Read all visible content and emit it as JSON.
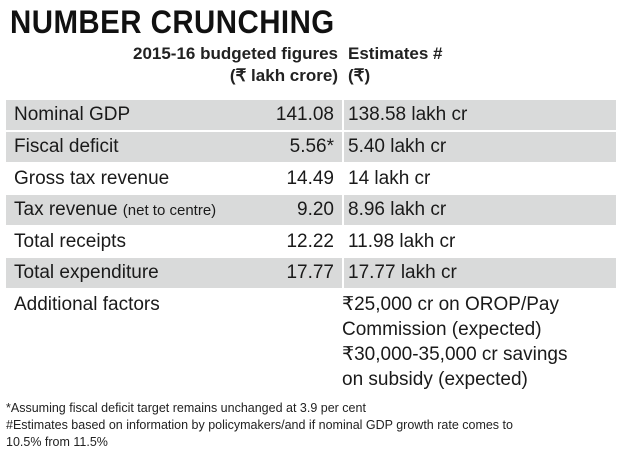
{
  "title": "NUMBER CRUNCHING",
  "headers": {
    "col1_line1": "2015-16 budgeted figures",
    "col1_line2": "(₹ lakh crore)",
    "col2_line1": "Estimates #",
    "col2_line2": "(₹)"
  },
  "rows": [
    {
      "label": "Nominal GDP",
      "note": "",
      "budget": "141.08",
      "estimate": "138.58 lakh cr"
    },
    {
      "label": "Fiscal deficit",
      "note": "",
      "budget": "5.56*",
      "estimate": "5.40 lakh cr"
    },
    {
      "label": "Gross tax revenue",
      "note": "",
      "budget": "14.49",
      "estimate": "14 lakh cr"
    },
    {
      "label": "Tax revenue",
      "note": "(net to centre)",
      "budget": "9.20",
      "estimate": "8.96 lakh cr"
    },
    {
      "label": "Total receipts",
      "note": "",
      "budget": "12.22",
      "estimate": "11.98 lakh cr"
    },
    {
      "label": "Total expenditure",
      "note": "",
      "budget": "17.77",
      "estimate": "17.77 lakh cr"
    }
  ],
  "additional": {
    "label": "Additional factors",
    "lines": [
      "₹25,000 cr on OROP/Pay",
      "Commission (expected)",
      "₹30,000-35,000 cr savings",
      "on subsidy (expected)"
    ]
  },
  "footnotes": [
    "*Assuming fiscal deficit target remains unchanged at 3.9 per cent",
    "#Estimates based on information by policymakers/and if nominal GDP growth rate comes to",
    "10.5% from 11.5%"
  ]
}
